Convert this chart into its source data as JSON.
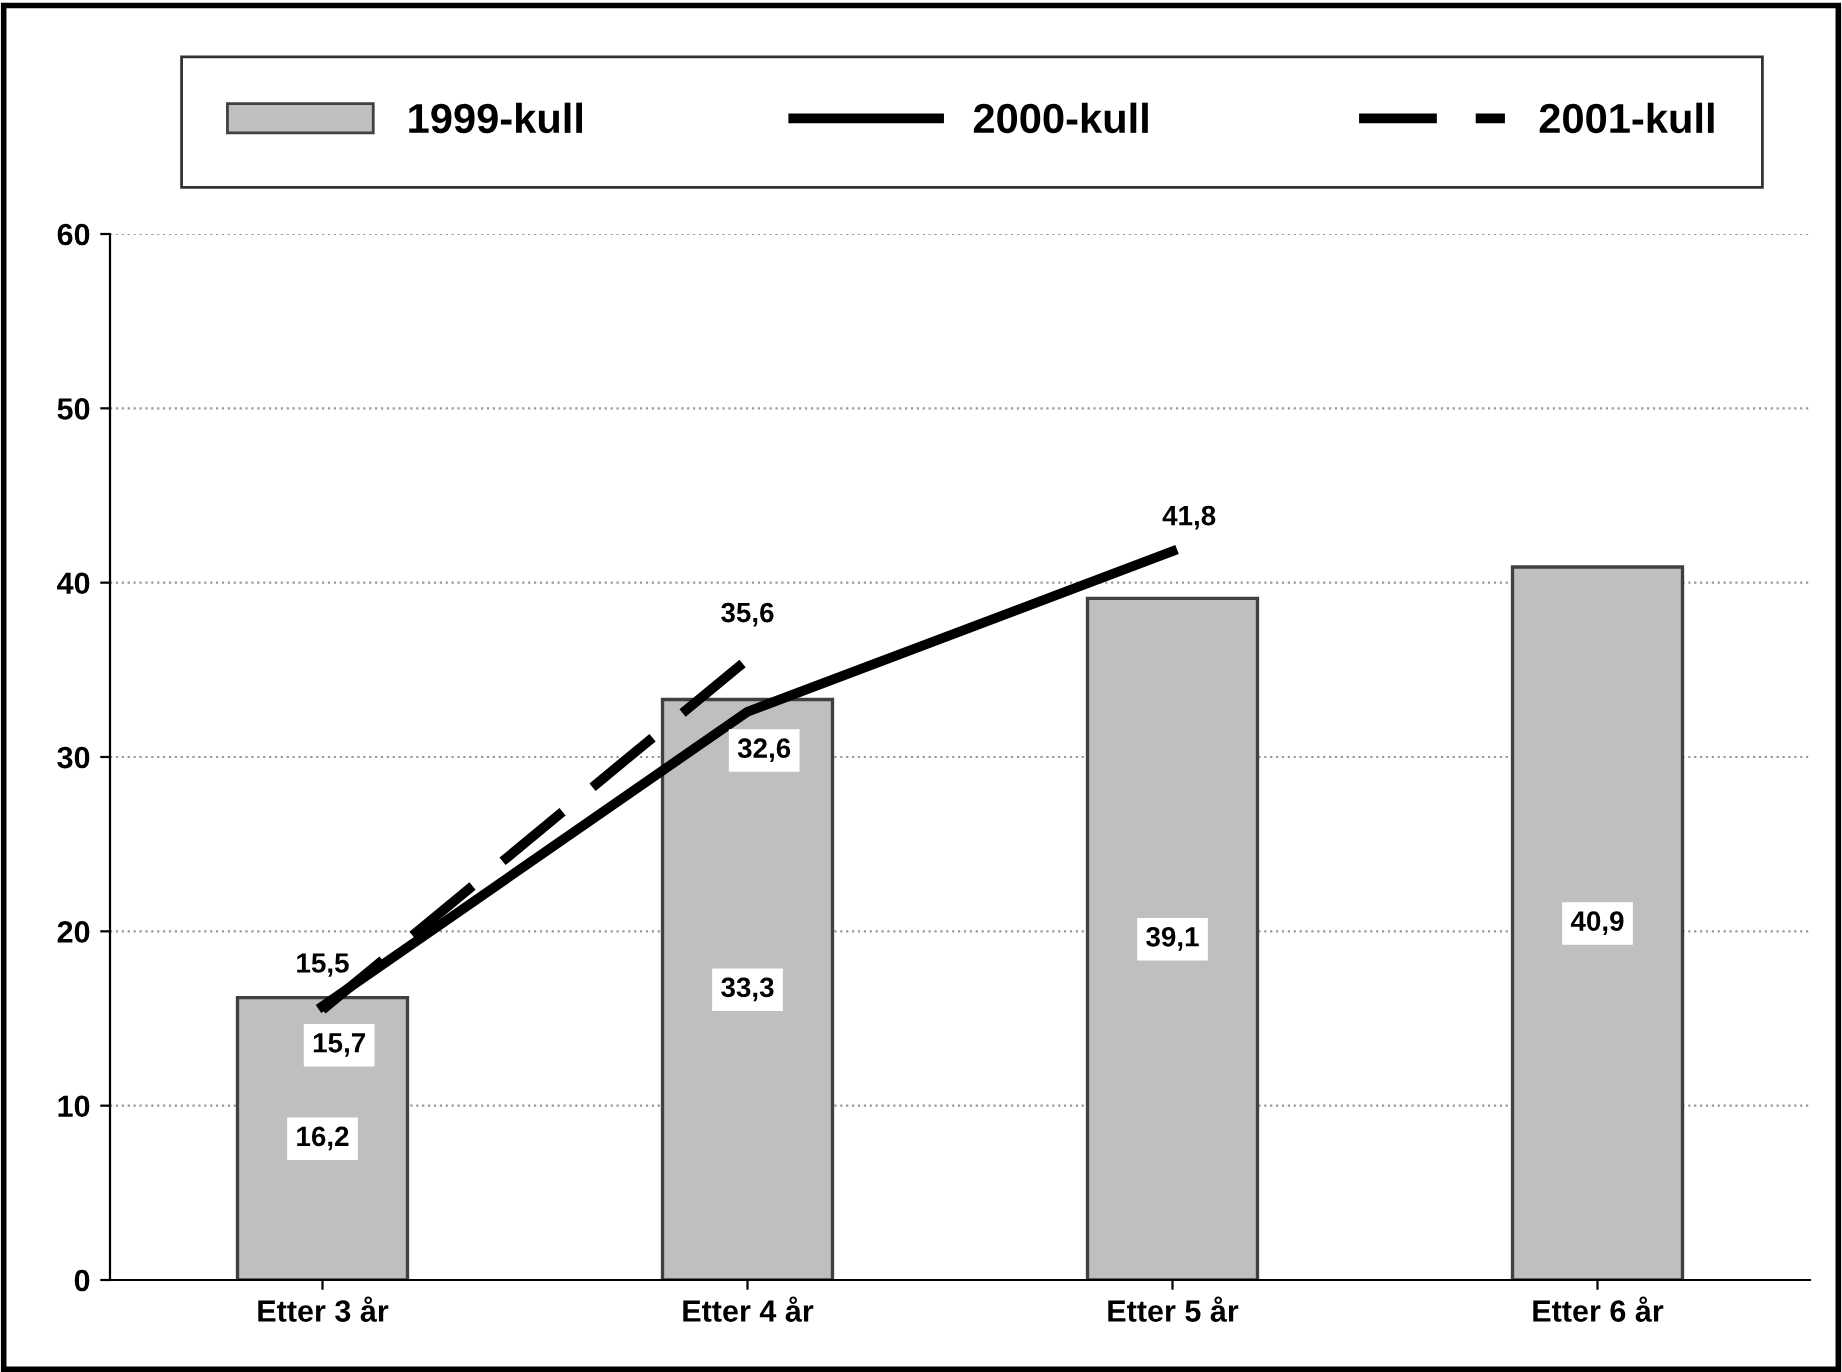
{
  "chart_data": {
    "type": "bar",
    "categories": [
      "Etter 3 år",
      "Etter 4 år",
      "Etter 5 år",
      "Etter 6 år"
    ],
    "series": [
      {
        "name": "1999-kull",
        "color": "#bfbfbf",
        "values": [
          16.2,
          33.3,
          39.1,
          40.9
        ],
        "value_labels": [
          "16,2",
          "33,3",
          "39,1",
          "40,9"
        ]
      },
      {
        "name": "2000-kull",
        "type": "line",
        "color": "#000000",
        "line_style": "solid",
        "values": [
          15.7,
          32.6,
          41.8,
          null
        ],
        "value_labels": [
          "15,7",
          "32,6",
          "41,8",
          null
        ]
      },
      {
        "name": "2001-kull",
        "type": "line",
        "color": "#000000",
        "line_style": "dashed",
        "values": [
          15.5,
          35.6,
          null,
          null
        ],
        "value_labels": [
          "15,5",
          "35,6",
          null,
          null
        ]
      }
    ],
    "ylim": [
      0,
      60
    ],
    "yticks": [
      0,
      10,
      20,
      30,
      40,
      50,
      60
    ],
    "grid": "y",
    "legend": "top",
    "marker": "none"
  }
}
